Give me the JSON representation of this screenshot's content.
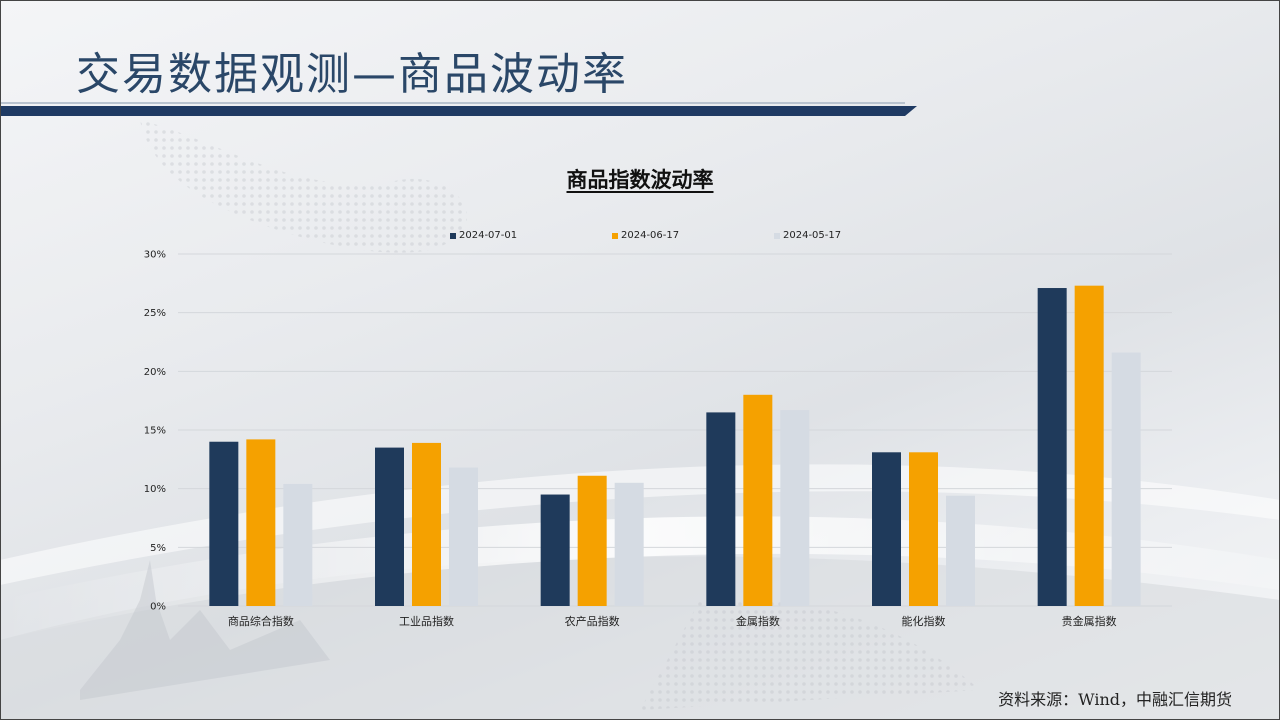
{
  "slide": {
    "title": "交易数据观测—商品波动率",
    "source": "资料来源：Wind，中融汇信期货"
  },
  "colors": {
    "title": "#2a4768",
    "title_bar": "#1f3a63",
    "series_1": "#1f3a5b",
    "series_2": "#f5a100",
    "series_3": "#d5dbe3",
    "grid": "#d4d7db"
  },
  "chart_data": {
    "type": "bar",
    "title": "商品指数波动率",
    "xlabel": "",
    "ylabel": "",
    "ylim": [
      0,
      30
    ],
    "y_ticks": [
      "0%",
      "5%",
      "10%",
      "15%",
      "20%",
      "25%",
      "30%"
    ],
    "grid": true,
    "legend_position": "top",
    "categories": [
      "商品综合指数",
      "工业品指数",
      "农产品指数",
      "金属指数",
      "能化指数",
      "贵金属指数"
    ],
    "series": [
      {
        "name": "2024-07-01",
        "values": [
          14.0,
          13.5,
          9.5,
          16.5,
          13.1,
          27.1
        ]
      },
      {
        "name": "2024-06-17",
        "values": [
          14.2,
          13.9,
          11.1,
          18.0,
          13.1,
          27.3
        ]
      },
      {
        "name": "2024-05-17",
        "values": [
          10.4,
          11.8,
          10.5,
          16.7,
          9.4,
          21.6
        ]
      }
    ]
  }
}
